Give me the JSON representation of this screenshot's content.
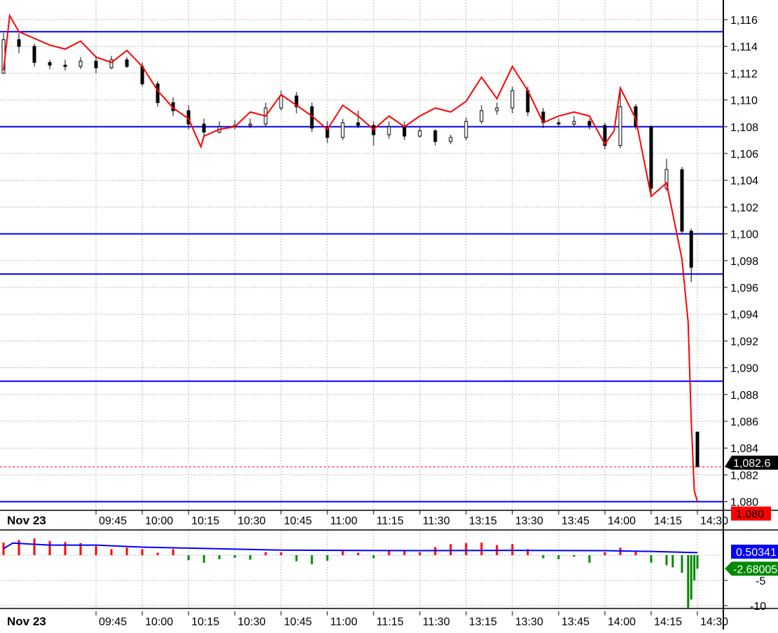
{
  "chart_data": [
    {
      "type": "candlestick+line",
      "panel": "price",
      "date_label": "Nov 23",
      "time_ticks": [
        "09:45",
        "10:00",
        "10:15",
        "10:30",
        "10:45",
        "11:00",
        "11:15",
        "11:30",
        "13:15",
        "13:30",
        "13:45",
        "14:00",
        "14:15",
        "14:30"
      ],
      "y_ticks": [
        "1,116",
        "1,114",
        "1,112",
        "1,110",
        "1,108",
        "1,106",
        "1,104",
        "1,102",
        "1,100",
        "1,098",
        "1,096",
        "1,094",
        "1,092",
        "1,090",
        "1,088",
        "1,086",
        "1,084",
        "1,082",
        "1,080"
      ],
      "ylim": [
        1079,
        1117.5
      ],
      "grid": true,
      "horizontal_levels": [
        1115.1,
        1108,
        1100,
        1097,
        1089,
        1080
      ],
      "last_price_label": "1,082.6",
      "last_price": 1082.6,
      "line_last_label": "1,080",
      "colors": {
        "candle_up": "#ffffff",
        "candle_down": "#000000",
        "line": "#ff0000",
        "levels": "#0000ff",
        "last_price_tag": "#000000",
        "line_tag": "#ff0000"
      },
      "candles": [
        [
          "09:15",
          1112,
          1115,
          1112,
          1114.5
        ],
        [
          "09:20",
          1114.5,
          1115,
          1113.5,
          1114
        ],
        [
          "09:25",
          1114,
          1114.2,
          1112.5,
          1112.8
        ],
        [
          "09:30",
          1112.8,
          1113,
          1112.3,
          1112.6
        ],
        [
          "09:35",
          1112.6,
          1113,
          1112.2,
          1112.5
        ],
        [
          "09:40",
          1112.5,
          1113.2,
          1112.3,
          1112.9
        ],
        [
          "09:45",
          1112.9,
          1113.3,
          1112,
          1112.4
        ],
        [
          "09:50",
          1112.4,
          1113.3,
          1112.3,
          1113
        ],
        [
          "09:55",
          1113,
          1113.2,
          1112.4,
          1112.5
        ],
        [
          "10:00",
          1112.5,
          1112.8,
          1111,
          1111.2
        ],
        [
          "10:05",
          1111.2,
          1111.4,
          1109.5,
          1109.8
        ],
        [
          "10:10",
          1109.8,
          1110.2,
          1108.8,
          1109.2
        ],
        [
          "10:15",
          1109.2,
          1109.6,
          1107.8,
          1108.2
        ],
        [
          "10:20",
          1108.2,
          1108.6,
          1107.2,
          1107.6
        ],
        [
          "10:25",
          1107.6,
          1108.4,
          1107.5,
          1108
        ],
        [
          "10:30",
          1108,
          1108.5,
          1107.8,
          1108.1
        ],
        [
          "10:35",
          1108.1,
          1108.6,
          1107.9,
          1108.2
        ],
        [
          "10:40",
          1108.2,
          1109.8,
          1108,
          1109.4
        ],
        [
          "10:45",
          1109.4,
          1110.7,
          1109.2,
          1110.3
        ],
        [
          "10:50",
          1110.3,
          1110.6,
          1109,
          1109.5
        ],
        [
          "10:55",
          1109.5,
          1109.8,
          1107.6,
          1107.9
        ],
        [
          "11:00",
          1107.9,
          1108.4,
          1106.8,
          1107.2
        ],
        [
          "11:05",
          1107.2,
          1108.6,
          1107,
          1108.3
        ],
        [
          "11:10",
          1108.3,
          1109.2,
          1107.9,
          1108.1
        ],
        [
          "11:15",
          1108.1,
          1108.4,
          1106.6,
          1107.4
        ],
        [
          "11:20",
          1107.4,
          1108.4,
          1107.1,
          1108
        ],
        [
          "11:25",
          1108,
          1108.4,
          1107,
          1107.3
        ],
        [
          "11:30",
          1107.3,
          1108,
          1107.2,
          1107.7
        ],
        [
          "13:05",
          1107.7,
          1107.8,
          1106.6,
          1106.9
        ],
        [
          "13:10",
          1106.9,
          1107.4,
          1106.7,
          1107.2
        ],
        [
          "13:15",
          1107.2,
          1108.7,
          1107,
          1108.4
        ],
        [
          "13:20",
          1108.4,
          1109.6,
          1108.2,
          1109.2
        ],
        [
          "13:25",
          1109.2,
          1109.8,
          1108.9,
          1109.4
        ],
        [
          "13:30",
          1109.4,
          1111,
          1109,
          1110.7
        ],
        [
          "13:35",
          1110.7,
          1111,
          1108.8,
          1109.1
        ],
        [
          "13:40",
          1109.1,
          1109.4,
          1107.9,
          1108.3
        ],
        [
          "13:45",
          1108.3,
          1108.6,
          1108,
          1108.2
        ],
        [
          "13:50",
          1108.2,
          1108.8,
          1108,
          1108.4
        ],
        [
          "13:55",
          1108.4,
          1108.6,
          1107.8,
          1108.1
        ],
        [
          "14:00",
          1108.1,
          1108.3,
          1106.3,
          1106.6
        ],
        [
          "14:05",
          1106.6,
          1110.8,
          1106.4,
          1109.5
        ],
        [
          "14:10",
          1109.5,
          1109.7,
          1107.8,
          1108
        ],
        [
          "14:15",
          1108,
          1108.1,
          1103,
          1103.4
        ],
        [
          "14:20",
          1103.4,
          1105.6,
          1103.2,
          1104.8
        ],
        [
          "14:25",
          1104.8,
          1105,
          1100,
          1100.2
        ],
        [
          "14:28",
          1100.2,
          1100.4,
          1096.4,
          1097.5
        ],
        [
          "14:30",
          1085.2,
          1085.2,
          1082.6,
          1082.6
        ]
      ],
      "line": [
        [
          "09:15",
          1112.2
        ],
        [
          "09:17",
          1116.3
        ],
        [
          "09:20",
          1115.1
        ],
        [
          "09:25",
          1114.6
        ],
        [
          "09:30",
          1114.1
        ],
        [
          "09:35",
          1113.8
        ],
        [
          "09:40",
          1114.4
        ],
        [
          "09:45",
          1113.2
        ],
        [
          "09:50",
          1112.8
        ],
        [
          "09:55",
          1113.7
        ],
        [
          "10:00",
          1112.5
        ],
        [
          "10:05",
          1110.7
        ],
        [
          "10:10",
          1109.4
        ],
        [
          "10:15",
          1108.6
        ],
        [
          "10:19",
          1106.5
        ],
        [
          "10:20",
          1107.3
        ],
        [
          "10:25",
          1107.8
        ],
        [
          "10:30",
          1108
        ],
        [
          "10:35",
          1109.1
        ],
        [
          "10:40",
          1108.8
        ],
        [
          "10:45",
          1110.4
        ],
        [
          "10:50",
          1109.6
        ],
        [
          "10:55",
          1108.8
        ],
        [
          "11:00",
          1107.8
        ],
        [
          "11:05",
          1109.6
        ],
        [
          "11:10",
          1108.8
        ],
        [
          "11:15",
          1107.8
        ],
        [
          "11:20",
          1108.8
        ],
        [
          "11:25",
          1108
        ],
        [
          "11:30",
          1108.8
        ],
        [
          "13:05",
          1109.4
        ],
        [
          "13:10",
          1109.1
        ],
        [
          "13:15",
          1109.9
        ],
        [
          "13:20",
          1111.7
        ],
        [
          "13:25",
          1110.1
        ],
        [
          "13:30",
          1112.5
        ],
        [
          "13:35",
          1110.7
        ],
        [
          "13:40",
          1108.3
        ],
        [
          "13:45",
          1108.8
        ],
        [
          "13:50",
          1109.1
        ],
        [
          "13:55",
          1108.8
        ],
        [
          "14:00",
          1106.7
        ],
        [
          "14:03",
          1107.7
        ],
        [
          "14:05",
          1110.9
        ],
        [
          "14:10",
          1108.6
        ],
        [
          "14:15",
          1102.8
        ],
        [
          "14:20",
          1103.8
        ],
        [
          "14:25",
          1098.1
        ],
        [
          "14:27",
          1093.4
        ],
        [
          "14:28",
          1086.1
        ],
        [
          "14:29",
          1080.8
        ],
        [
          "14:30",
          1080
        ]
      ]
    },
    {
      "type": "bar+line",
      "panel": "indicator",
      "y_ticks": [
        "-5",
        "-10"
      ],
      "ylim": [
        -10.5,
        5
      ],
      "line_last_label": "0.50341",
      "bar_last_label": "-2.68005",
      "colors": {
        "positive": "#ff0000",
        "negative": "#008800",
        "line": "#0000ff"
      },
      "bars": [
        [
          "09:15",
          2.5
        ],
        [
          "09:20",
          3
        ],
        [
          "09:25",
          3.3
        ],
        [
          "09:30",
          2.8
        ],
        [
          "09:35",
          2.6
        ],
        [
          "09:40",
          2.4
        ],
        [
          "09:45",
          1.8
        ],
        [
          "09:50",
          1.2
        ],
        [
          "09:55",
          1.5
        ],
        [
          "10:00",
          1.2
        ],
        [
          "10:05",
          0.5
        ],
        [
          "10:10",
          1.2
        ],
        [
          "10:15",
          -1
        ],
        [
          "10:20",
          -1.5
        ],
        [
          "10:25",
          -0.8
        ],
        [
          "10:30",
          -0.5
        ],
        [
          "10:35",
          -0.9
        ],
        [
          "10:40",
          0.6
        ],
        [
          "10:45",
          0.6
        ],
        [
          "10:50",
          -1.2
        ],
        [
          "10:55",
          -1.8
        ],
        [
          "11:00",
          -1.1
        ],
        [
          "11:05",
          0.8
        ],
        [
          "11:10",
          0.5
        ],
        [
          "11:15",
          -0.6
        ],
        [
          "11:20",
          0.9
        ],
        [
          "11:25",
          0.8
        ],
        [
          "11:30",
          0.6
        ],
        [
          "13:05",
          1.6
        ],
        [
          "13:10",
          2.2
        ],
        [
          "13:15",
          2.4
        ],
        [
          "13:20",
          2.5
        ],
        [
          "13:25",
          2
        ],
        [
          "13:30",
          2.2
        ],
        [
          "13:35",
          1.2
        ],
        [
          "13:40",
          -0.6
        ],
        [
          "13:45",
          -0.8
        ],
        [
          "13:50",
          -0.3
        ],
        [
          "13:55",
          -1.5
        ],
        [
          "14:00",
          0.6
        ],
        [
          "14:05",
          1.5
        ],
        [
          "14:10",
          0.8
        ],
        [
          "14:15",
          -1.5
        ],
        [
          "14:20",
          -2
        ],
        [
          "14:22",
          -2.4
        ],
        [
          "14:25",
          -3.5
        ],
        [
          "14:27",
          -10.4
        ],
        [
          "14:28",
          -8.8
        ],
        [
          "14:29",
          -5
        ],
        [
          "14:30",
          -2.68
        ]
      ],
      "line": [
        [
          "09:15",
          1.3
        ],
        [
          "09:18",
          2.4
        ],
        [
          "09:30",
          2.0
        ],
        [
          "09:45",
          2.0
        ],
        [
          "10:00",
          1.6
        ],
        [
          "10:15",
          1.4
        ],
        [
          "10:45",
          1.0
        ],
        [
          "11:30",
          0.9
        ],
        [
          "13:30",
          0.95
        ],
        [
          "14:00",
          0.9
        ],
        [
          "14:15",
          0.75
        ],
        [
          "14:30",
          0.5
        ]
      ]
    }
  ]
}
